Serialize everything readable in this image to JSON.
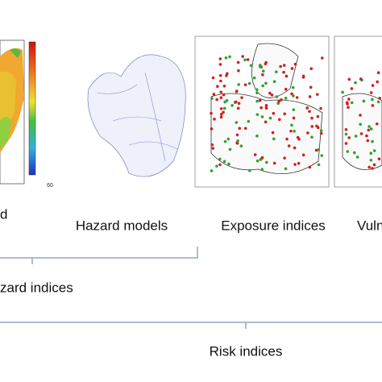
{
  "labels": {
    "hazard": "d",
    "hazard_models": "Hazard models",
    "exposure_indices": "Exposure indices",
    "vulnerability": "Vuln",
    "hazard_indices": "zard indices",
    "risk_indices": "Risk indices"
  },
  "map_axis_label": "60"
}
